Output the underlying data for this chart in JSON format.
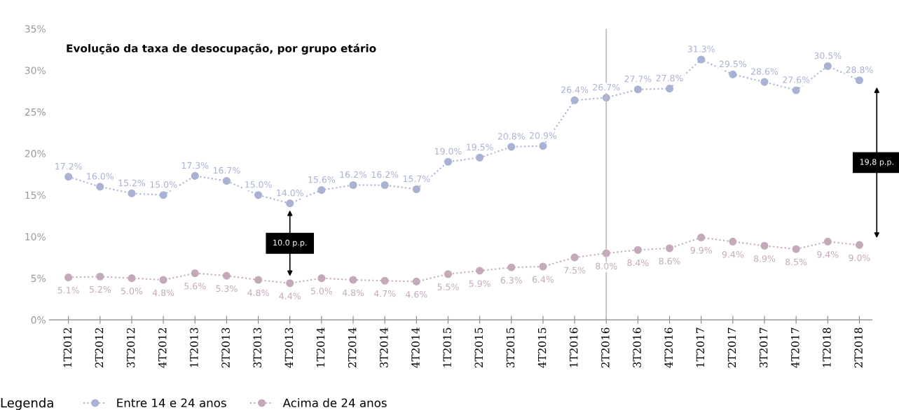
{
  "chart_data": {
    "type": "line",
    "title": "Evolução da taxa de desocupação, por grupo etário",
    "categories": [
      "1T2012",
      "2T2012",
      "3T2012",
      "4T2012",
      "1T2013",
      "2T2013",
      "3T2013",
      "4T2013",
      "1T2014",
      "2T2014",
      "3T2014",
      "4T2014",
      "1T2015",
      "2T2015",
      "3T2015",
      "4T2015",
      "1T2016",
      "2T2016",
      "3T2016",
      "4T2016",
      "1T2017",
      "2T2017",
      "3T2017",
      "4T2017",
      "1T2018",
      "2T2018"
    ],
    "series": [
      {
        "name": "Entre 14 e 24 anos",
        "color": "#a9b2d2",
        "values": [
          17.2,
          16.0,
          15.2,
          15.0,
          17.3,
          16.7,
          15.0,
          14.0,
          15.6,
          16.2,
          16.2,
          15.7,
          19.0,
          19.5,
          20.8,
          20.9,
          26.4,
          26.7,
          27.7,
          27.8,
          31.3,
          29.5,
          28.6,
          27.6,
          30.5,
          28.8
        ],
        "value_labels": [
          "17.2%",
          "16.0%",
          "15.2%",
          "15.0%",
          "17.3%",
          "16.7%",
          "15.0%",
          "14.0%",
          "15.6%",
          "16.2%",
          "16.2%",
          "15.7%",
          "19.0%",
          "19.5%",
          "20.8%",
          "20.9%",
          "26.4%",
          "26.7%",
          "27.7%",
          "27.8%",
          "31.3%",
          "29.5%",
          "28.6%",
          "27.6%",
          "30.5%",
          "28.8%"
        ]
      },
      {
        "name": "Acima de 24 anos",
        "color": "#c4a9bb",
        "values": [
          5.1,
          5.2,
          5.0,
          4.8,
          5.6,
          5.3,
          4.8,
          4.4,
          5.0,
          4.8,
          4.7,
          4.6,
          5.5,
          5.9,
          6.3,
          6.4,
          7.5,
          8.0,
          8.4,
          8.6,
          9.9,
          9.4,
          8.9,
          8.5,
          9.4,
          9.0
        ],
        "value_labels": [
          "5.1%",
          "5.2%",
          "5.0%",
          "4.8%",
          "5.6%",
          "5.3%",
          "4.8%",
          "4.4%",
          "5.0%",
          "4.8%",
          "4.7%",
          "4.6%",
          "5.5%",
          "5.9%",
          "6.3%",
          "6.4%",
          "7.5%",
          "8.0%",
          "8.4%",
          "8.6%",
          "9.9%",
          "9.4%",
          "8.9%",
          "8.5%",
          "9.4%",
          "9.0%"
        ]
      }
    ],
    "ylim": [
      0,
      35
    ],
    "yticks": [
      {
        "value": 0,
        "label": "0%"
      },
      {
        "value": 5,
        "label": "5%"
      },
      {
        "value": 10,
        "label": "10%"
      },
      {
        "value": 15,
        "label": "15%"
      },
      {
        "value": 20,
        "label": "20%"
      },
      {
        "value": 25,
        "label": "25%"
      },
      {
        "value": 30,
        "label": "30%"
      },
      {
        "value": 35,
        "label": "35%"
      }
    ],
    "legend_title": "Legenda",
    "legend": "bottom",
    "marker": "circle",
    "line_style": "dotted",
    "grid": false,
    "ref_lines": [
      {
        "axis": "x",
        "value": "2T2016",
        "color": "#c8b4bc"
      }
    ],
    "annotations": [
      "10.0 p.p.",
      "19,8 p.p."
    ]
  }
}
